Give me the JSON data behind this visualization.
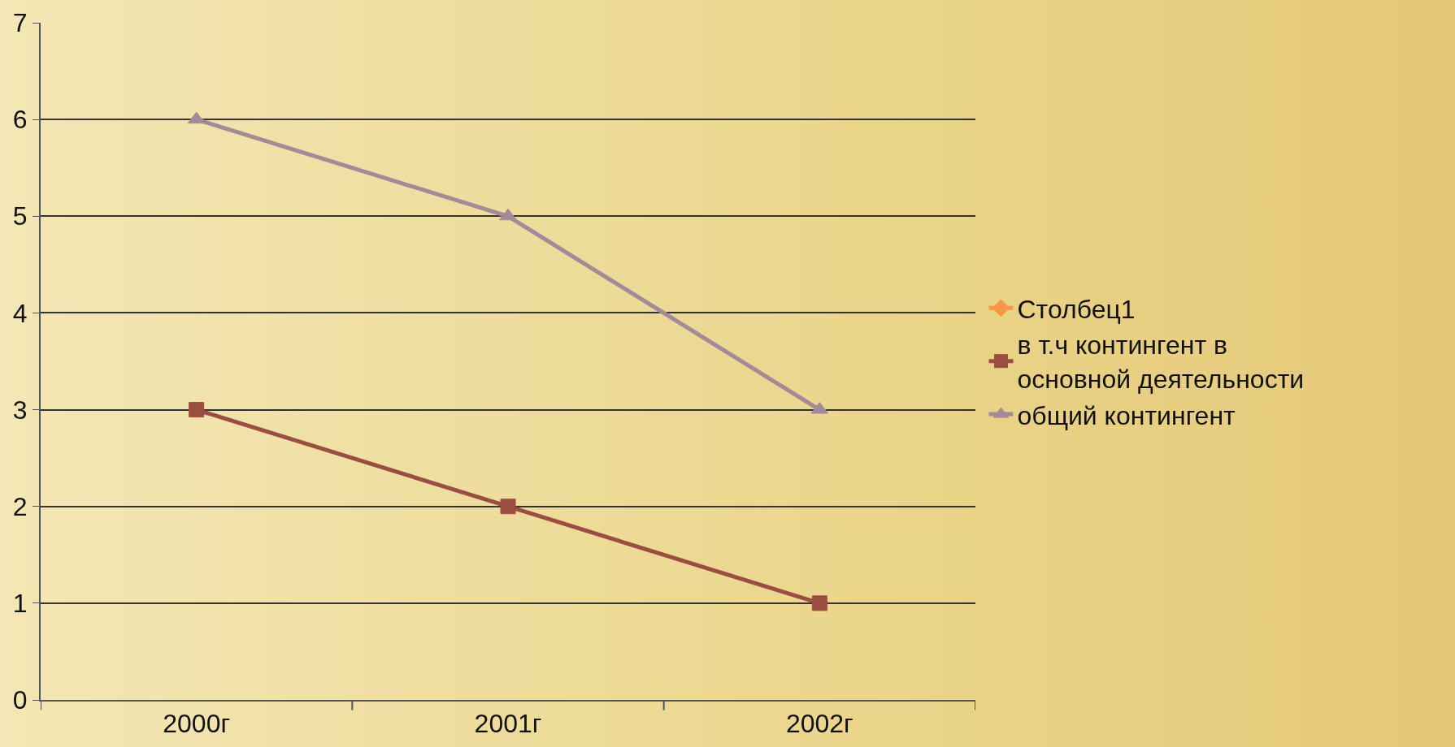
{
  "chart_data": {
    "type": "line",
    "categories": [
      "2000г",
      "2001г",
      "2002г"
    ],
    "series": [
      {
        "name": "Столбец1",
        "color": "#f79646",
        "marker": "diamond",
        "values": [
          null,
          null,
          null
        ]
      },
      {
        "name": "в т.ч контингент в основной деятельности",
        "color": "#9b4d42",
        "marker": "square",
        "values": [
          3,
          2,
          1
        ]
      },
      {
        "name": "общий контингент",
        "color": "#a38a98",
        "marker": "triangle",
        "values": [
          6,
          5,
          3
        ]
      }
    ],
    "ylim": [
      0,
      7
    ],
    "yticks": [
      0,
      1,
      2,
      3,
      4,
      5,
      6,
      7
    ],
    "grid": "y",
    "legend": "right"
  }
}
